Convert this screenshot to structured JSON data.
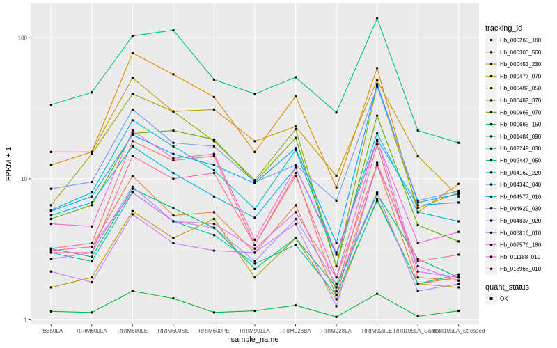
{
  "chart_data": {
    "type": "line",
    "xlabel": "sample_name",
    "ylabel": "FPKM + 1",
    "y_scale": "log10",
    "ylim": [
      0.93,
      175
    ],
    "y_ticks": [
      {
        "value": 1,
        "label": "1"
      },
      {
        "value": 10,
        "label": "10"
      },
      {
        "value": 100,
        "label": "100"
      }
    ],
    "grid": true,
    "legend_position": "right",
    "categories": [
      "PB350LA",
      "RRIM600LA",
      "RRIM600LE",
      "RRIM600SE",
      "RRIM600PE",
      "RRIM901LA",
      "RRIM928BA",
      "RRIM928LA",
      "RRIM928LE",
      "RRII105LA_Control",
      "RRII105LA_Stressed"
    ],
    "legend_title": "tracking_id",
    "series": [
      {
        "name": "Hb_000260_160",
        "color": "#F8766D",
        "values": [
          3.2,
          3.5,
          18.5,
          13.5,
          14.5,
          3.4,
          11.0,
          1.6,
          17.5,
          2.0,
          1.9
        ]
      },
      {
        "name": "Hb_000300_560",
        "color": "#EE8043",
        "values": [
          3.1,
          3.3,
          10.5,
          5.5,
          5.8,
          3.0,
          6.5,
          1.5,
          12.5,
          1.8,
          2.0
        ]
      },
      {
        "name": "Hb_000453_230",
        "color": "#E18A00",
        "values": [
          12.5,
          15.5,
          78.0,
          55.0,
          38.0,
          15.5,
          38.5,
          8.7,
          61.0,
          5.8,
          9.2
        ]
      },
      {
        "name": "Hb_000477_070",
        "color": "#CE9700",
        "values": [
          15.5,
          15.5,
          52.0,
          30.0,
          31.0,
          18.5,
          23.5,
          10.5,
          50.0,
          14.5,
          7.5
        ]
      },
      {
        "name": "Hb_000482_050",
        "color": "#B49F00",
        "values": [
          1.7,
          2.0,
          5.9,
          3.8,
          5.2,
          2.0,
          3.8,
          1.4,
          7.2,
          1.8,
          1.7
        ]
      },
      {
        "name": "Hb_000487_370",
        "color": "#94A800",
        "values": [
          6.5,
          15.0,
          40.0,
          30.0,
          18.5,
          9.8,
          22.5,
          2.4,
          46.0,
          6.2,
          8.0
        ]
      },
      {
        "name": "Hb_000665_070",
        "color": "#5BB300",
        "values": [
          5.2,
          6.5,
          21.0,
          22.0,
          19.0,
          9.5,
          19.5,
          2.4,
          28.0,
          4.7,
          3.6
        ]
      },
      {
        "name": "Hb_000665_150",
        "color": "#00BA38",
        "values": [
          1.15,
          1.13,
          1.6,
          1.42,
          1.13,
          1.16,
          1.27,
          1.05,
          1.53,
          1.06,
          1.16
        ]
      },
      {
        "name": "Hb_001484_090",
        "color": "#00BE6C",
        "values": [
          3.2,
          2.8,
          8.5,
          6.2,
          4.5,
          2.3,
          3.8,
          1.7,
          7.8,
          2.7,
          2.0
        ]
      },
      {
        "name": "Hb_002249_030",
        "color": "#00C08E",
        "values": [
          33.5,
          41.0,
          103.0,
          113.0,
          50.5,
          40.0,
          52.5,
          29.5,
          137.0,
          22.0,
          18.0
        ]
      },
      {
        "name": "Hb_002447_050",
        "color": "#00C0AF",
        "values": [
          3.0,
          2.6,
          8.0,
          5.0,
          4.0,
          2.5,
          3.4,
          1.5,
          7.0,
          1.8,
          2.1
        ]
      },
      {
        "name": "Hb_004162_220",
        "color": "#00BCD8",
        "values": [
          6.0,
          8.0,
          26.0,
          17.0,
          11.5,
          6.1,
          16.0,
          2.9,
          21.0,
          5.8,
          5.0
        ]
      },
      {
        "name": "Hb_004346_040",
        "color": "#00B4EF",
        "values": [
          5.5,
          6.8,
          17.0,
          11.0,
          7.5,
          5.3,
          12.0,
          2.9,
          19.0,
          6.5,
          6.8
        ]
      },
      {
        "name": "Hb_004577_010",
        "color": "#00A5FF",
        "values": [
          5.9,
          7.5,
          20.5,
          15.0,
          12.5,
          9.3,
          16.5,
          3.5,
          47.0,
          6.8,
          7.8
        ]
      },
      {
        "name": "Hb_004629_030",
        "color": "#7997FF",
        "values": [
          8.5,
          9.5,
          31.0,
          18.0,
          17.0,
          9.5,
          12.5,
          7.0,
          45.0,
          7.0,
          8.2
        ]
      },
      {
        "name": "Hb_004837_020",
        "color": "#AC88FF",
        "values": [
          2.7,
          3.0,
          8.8,
          5.0,
          4.5,
          2.6,
          5.2,
          1.8,
          8.0,
          1.6,
          1.8
        ]
      },
      {
        "name": "Hb_006816_010",
        "color": "#CE78FF",
        "values": [
          2.2,
          1.85,
          5.6,
          3.5,
          3.1,
          3.0,
          4.8,
          1.25,
          13.0,
          2.4,
          1.9
        ]
      },
      {
        "name": "Hb_007576_180",
        "color": "#E76BF3",
        "values": [
          3.1,
          3.3,
          8.0,
          5.0,
          4.8,
          3.2,
          5.8,
          2.0,
          19.0,
          2.2,
          2.0
        ]
      },
      {
        "name": "Hb_011188_010",
        "color": "#F763E0",
        "values": [
          4.8,
          4.6,
          22.0,
          14.0,
          15.0,
          3.7,
          12.0,
          3.0,
          18.5,
          3.5,
          4.2
        ]
      },
      {
        "name": "Hb_013968_010",
        "color": "#FF6C91",
        "values": [
          3.0,
          3.0,
          14.5,
          10.0,
          11.0,
          3.4,
          10.5,
          2.0,
          12.5,
          2.6,
          2.9
        ]
      }
    ],
    "legend2_title": "quant_status",
    "legend2_items": [
      {
        "label": "OK"
      }
    ]
  }
}
